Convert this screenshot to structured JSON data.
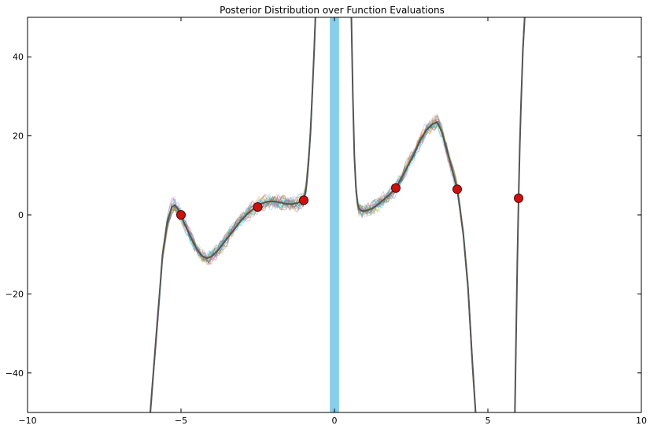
{
  "chart_data": {
    "type": "line",
    "title": "Posterior Distribution over Function Evaluations",
    "xlabel": "",
    "ylabel": "",
    "xlim": [
      -10,
      10
    ],
    "ylim": [
      -50,
      50
    ],
    "xticks": [
      -10,
      -5,
      0,
      5,
      10
    ],
    "yticks": [
      -40,
      -20,
      0,
      20,
      40
    ],
    "xtick_labels": [
      "−10",
      "−5",
      "0",
      "5",
      "10"
    ],
    "ytick_labels": [
      "−40",
      "−20",
      "0",
      "20",
      "40"
    ],
    "grid": false,
    "shaded_region": {
      "x": [
        -0.15,
        0.15
      ],
      "color": "#87ceeb"
    },
    "observations": {
      "x": [
        -5,
        -2.5,
        -1,
        2,
        4,
        6
      ],
      "y": [
        0,
        2,
        3.7,
        6.8,
        6.5,
        4.2
      ],
      "color": "#cc1111"
    },
    "mean_curve": {
      "color": "#555555",
      "segments": [
        {
          "x": [
            -6.0,
            -5.9,
            -5.75,
            -5.6,
            -5.45,
            -5.3,
            -5.2,
            -5.1,
            -5.0,
            -4.9,
            -4.75,
            -4.6,
            -4.45,
            -4.3,
            -4.15,
            -4.0,
            -3.8,
            -3.6,
            -3.4,
            -3.2,
            -3.0,
            -2.8,
            -2.6,
            -2.4,
            -2.2,
            -2.0,
            -1.8,
            -1.6,
            -1.4,
            -1.2,
            -1.1,
            -1.0,
            -0.92,
            -0.85,
            -0.78,
            -0.72,
            -0.66,
            -0.62
          ],
          "y": [
            -50,
            -40,
            -25,
            -10,
            -2,
            2,
            2.5,
            1.5,
            0,
            -2,
            -4.5,
            -7,
            -9,
            -10.5,
            -11,
            -10.5,
            -9,
            -7,
            -5,
            -3,
            -1,
            0.5,
            1.8,
            2.8,
            3.3,
            3.4,
            3.2,
            2.8,
            2.7,
            3.0,
            3.3,
            3.7,
            7,
            13,
            21,
            31,
            42,
            50
          ]
        },
        {
          "x": [
            0.55,
            0.6,
            0.65,
            0.7,
            0.75,
            0.8,
            0.9,
            1.0,
            1.2,
            1.4,
            1.6,
            1.8,
            2.0,
            2.2,
            2.4,
            2.6,
            2.8,
            3.0,
            3.2,
            3.35,
            3.5,
            3.65,
            3.8,
            3.9,
            4.0,
            4.1,
            4.2,
            4.35,
            4.5,
            4.6
          ],
          "y": [
            50,
            30,
            15,
            7,
            3,
            1.5,
            1,
            1,
            1.5,
            2.5,
            3.8,
            5.2,
            6.8,
            9.5,
            12.5,
            15.5,
            19,
            21.5,
            23,
            23.5,
            21,
            17,
            12.5,
            9.5,
            6.5,
            1,
            -5,
            -18,
            -38,
            -50
          ]
        },
        {
          "x": [
            5.88,
            5.92,
            5.96,
            6.0,
            6.04,
            6.08,
            6.14,
            6.2
          ],
          "y": [
            -50,
            -30,
            -12,
            4.2,
            18,
            28,
            42,
            50
          ]
        }
      ]
    },
    "samples": {
      "count": 20,
      "colors": [
        "#1f77b4",
        "#ff7f0e",
        "#2ca02c",
        "#d62728",
        "#9467bd",
        "#8c564b",
        "#e377c2",
        "#17becf",
        "#bcbd22",
        "#00bfff"
      ]
    }
  }
}
